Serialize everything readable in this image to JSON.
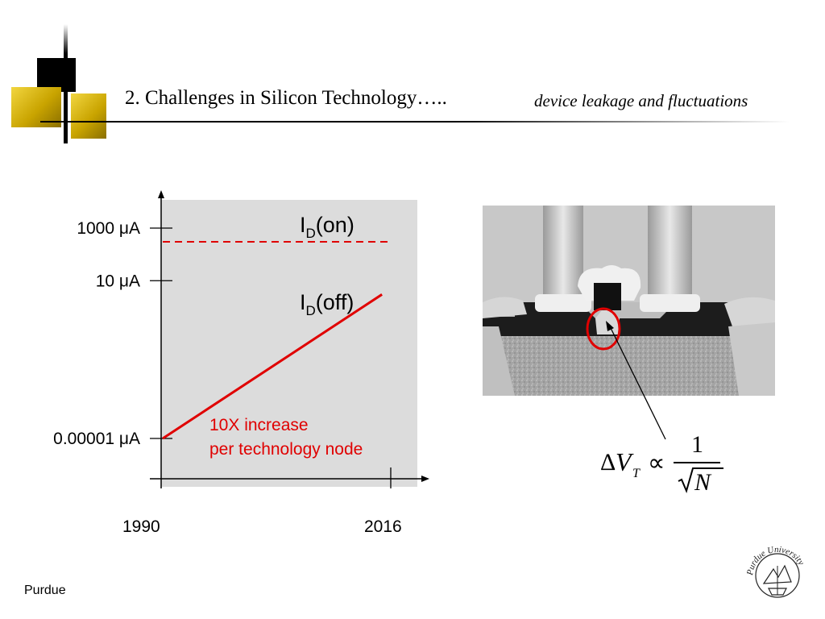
{
  "header": {
    "title": "2.  Challenges in Silicon Technology…..",
    "subtitle": "device leakage  and fluctuations"
  },
  "chart_data": {
    "type": "line",
    "y_scale": "log",
    "y_ticks": [
      {
        "label": "1000 μA",
        "value": 1000
      },
      {
        "label": "10 μA",
        "value": 10
      },
      {
        "label": "0.00001 μA",
        "value": 1e-05
      }
    ],
    "x_ticks": [
      {
        "label": "1990",
        "value": 1990
      },
      {
        "label": "2016",
        "value": 2016
      }
    ],
    "series": [
      {
        "name": "I_D(on)",
        "label_main": "I",
        "label_sub": "D",
        "label_rest": "(on)",
        "style": "dashed",
        "color": "#e00000",
        "x": [
          1990,
          2016
        ],
        "y": [
          300,
          300
        ]
      },
      {
        "name": "I_D(off)",
        "label_main": "I",
        "label_sub": "D",
        "label_rest": "(off)",
        "style": "solid",
        "color": "#e00000",
        "x": [
          1990,
          2015
        ],
        "y": [
          1e-05,
          3
        ]
      }
    ],
    "annotation": {
      "line1": "10X increase",
      "line2": "per technology node",
      "color": "#e00000"
    },
    "plot_background": "#dcdcdc"
  },
  "formula": {
    "delta": "Δ",
    "v": "V",
    "subscript": "T",
    "proportional": "∝",
    "numerator": "1",
    "denominator_var": "N"
  },
  "footer": {
    "label": "Purdue"
  },
  "seal": {
    "text": "Purdue University"
  }
}
